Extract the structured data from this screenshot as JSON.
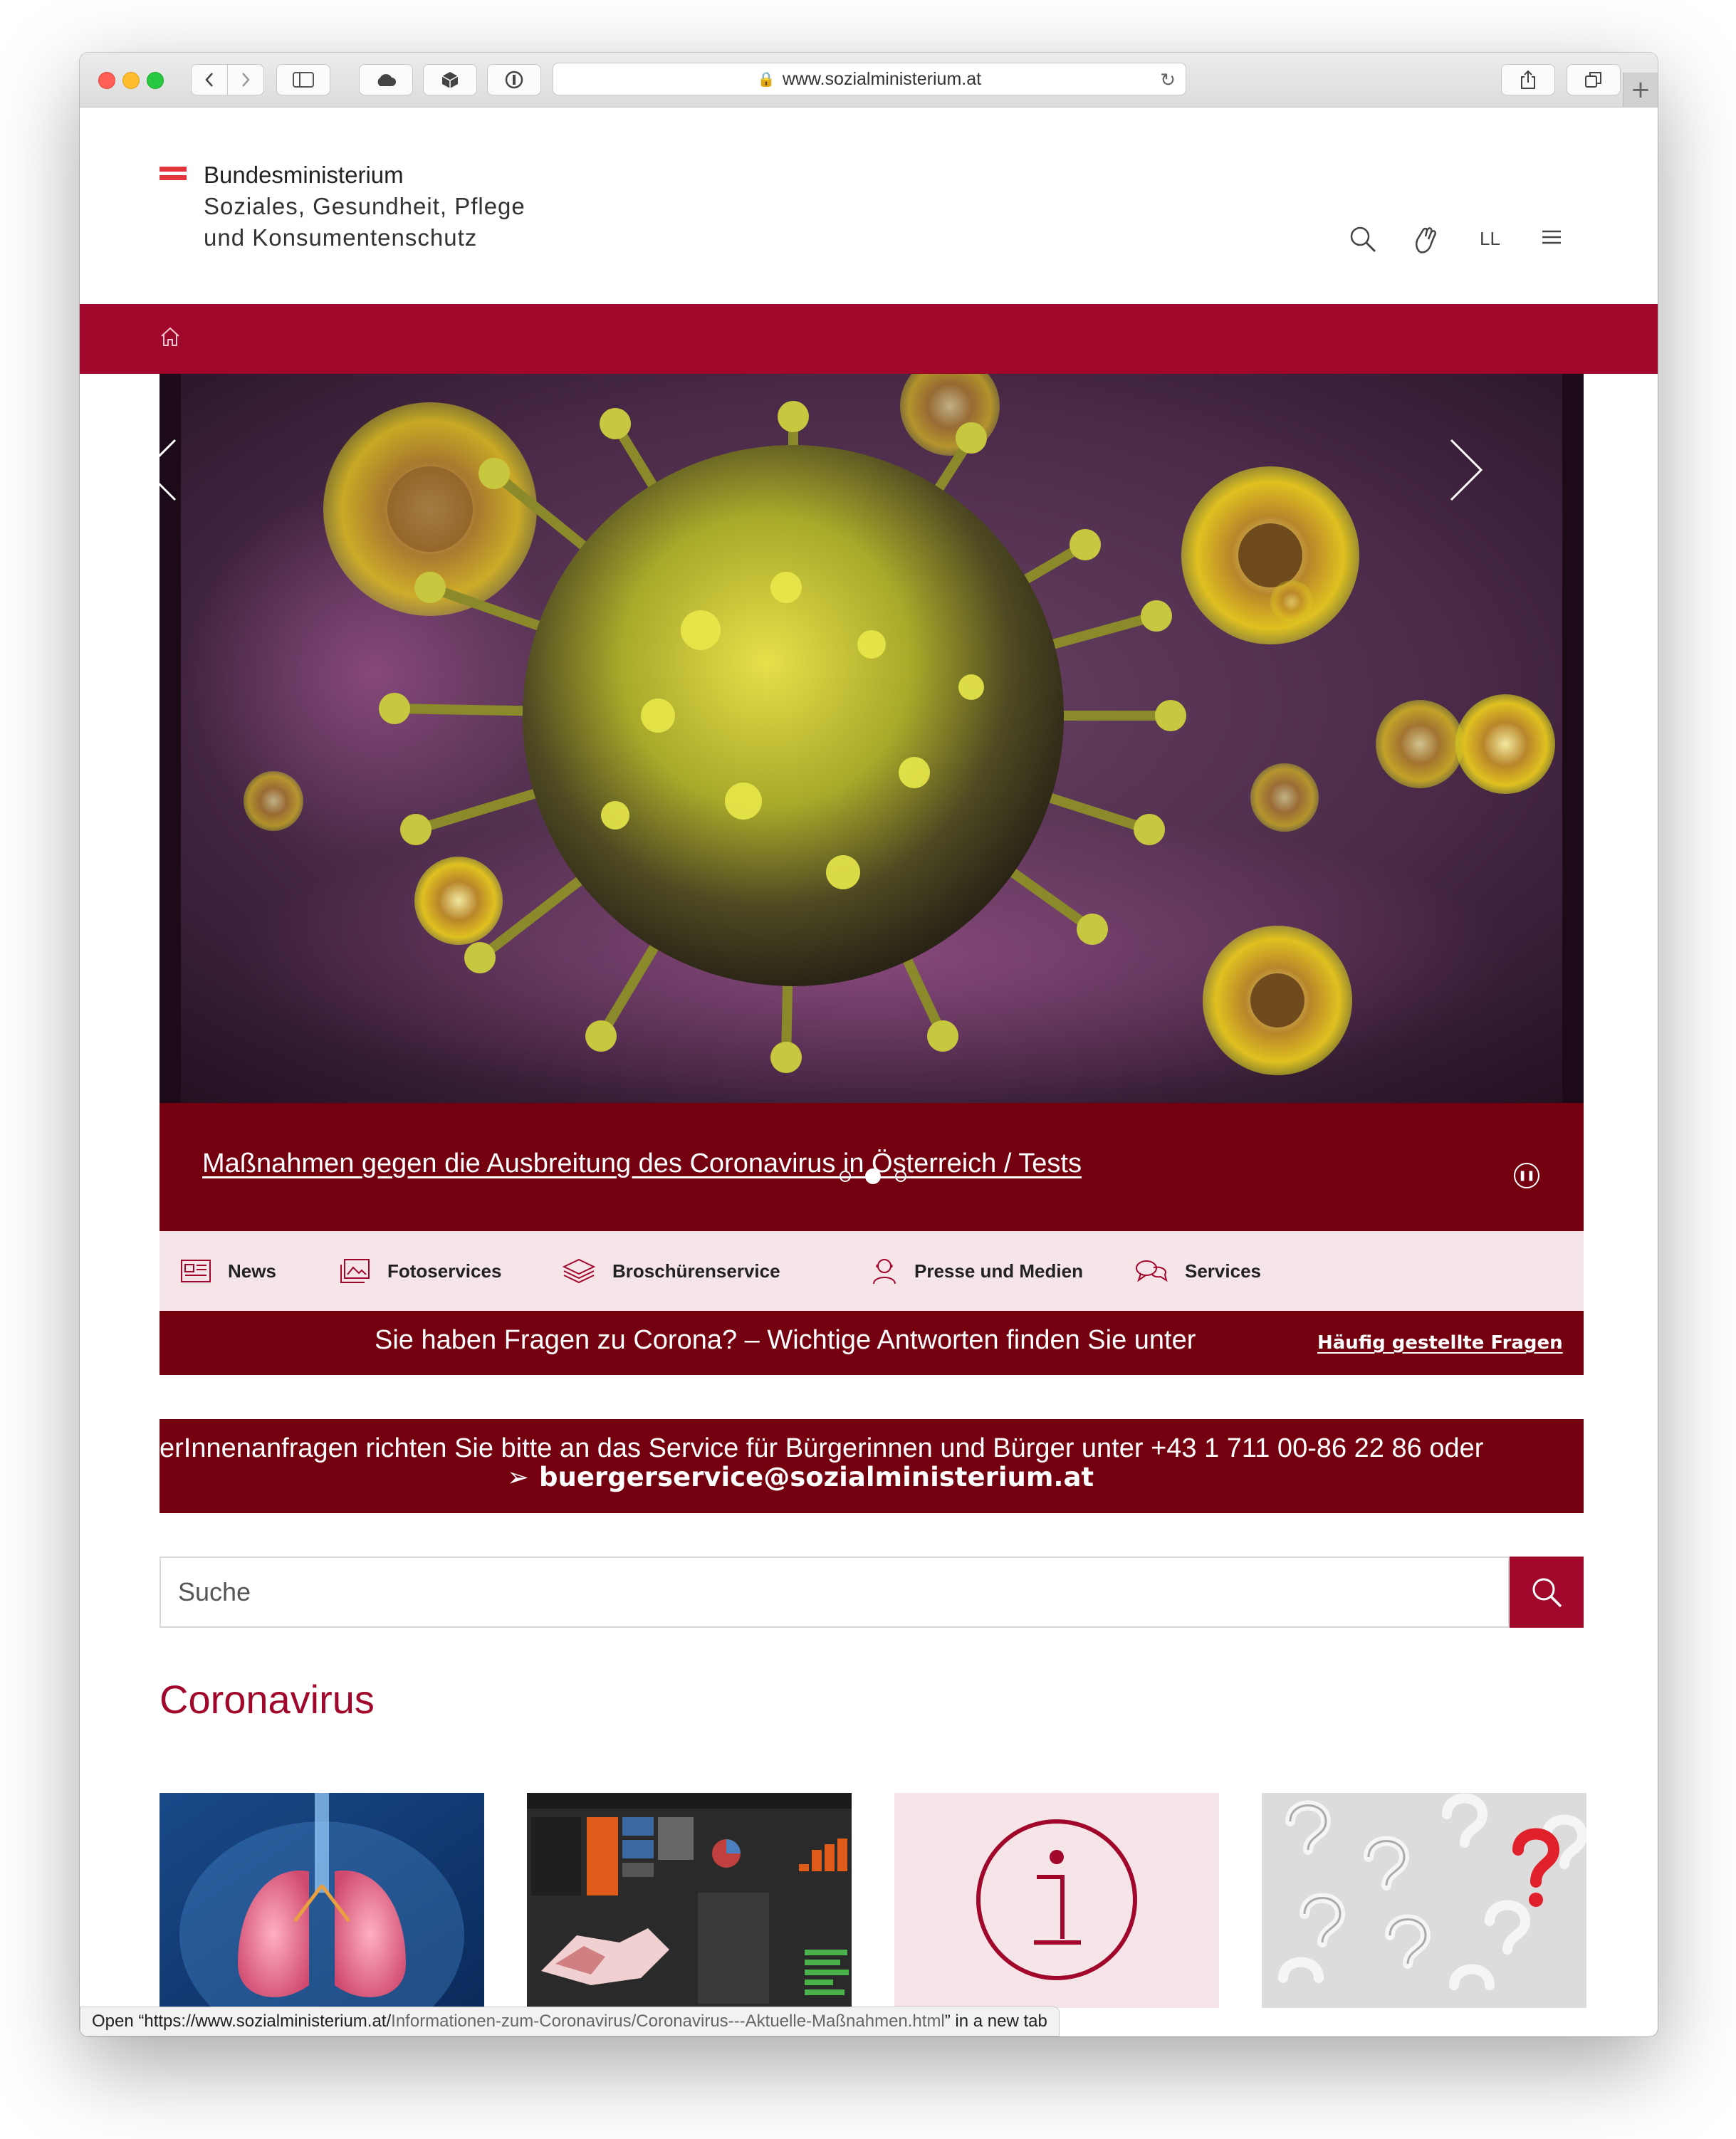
{
  "browser": {
    "url": "www.sozialministerium.at",
    "status_prefix": "Open “",
    "status_host": "https://www.sozialministerium.at/",
    "status_path": "Informationen-zum-Coronavirus/Coronavirus---Aktuelle-Maßnahmen.html",
    "status_suffix": "” in a new tab"
  },
  "header": {
    "brand_line1": "Bundesministerium",
    "brand_line2": "Soziales, Gesundheit, Pflege",
    "brand_line3": "und Konsumentenschutz",
    "easy_language_label": "LL"
  },
  "hero": {
    "caption": "Maßnahmen gegen die Ausbreitung des Coronavirus in Österreich / Tests"
  },
  "service_nav": {
    "items": [
      {
        "label": "News",
        "icon": "newspaper-icon"
      },
      {
        "label": "Fotoservices",
        "icon": "photo-icon"
      },
      {
        "label": "Broschürenservice",
        "icon": "layers-icon"
      },
      {
        "label": "Presse und Medien",
        "icon": "person-icon"
      },
      {
        "label": "Services",
        "icon": "chat-icon"
      }
    ]
  },
  "banner": {
    "text": "Sie haben Fragen zu Corona? – Wichtige Antworten finden Sie unter",
    "link": "Häufig gestellte Fragen"
  },
  "ticker": {
    "line1": "erInnenanfragen richten Sie bitte an das Service für Bürgerinnen und Bürger unter +43 1 711 00-86 22 86 oder",
    "email": "buergerservice@sozialministerium.at"
  },
  "search": {
    "placeholder": "Suche"
  },
  "section": {
    "title": "Coronavirus"
  },
  "colors": {
    "brand_red": "#a1072b",
    "dark_red": "#74000f",
    "pink": "#f5e4e8"
  }
}
